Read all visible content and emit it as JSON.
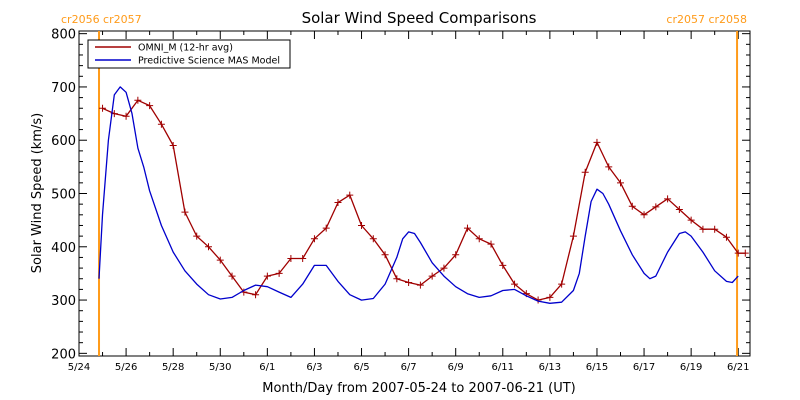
{
  "chart_data": {
    "type": "line",
    "title": "Solar Wind Speed Comparisons",
    "xlabel": "Month/Day from 2007-05-24 to 2007-06-21 (UT)",
    "ylabel": "Solar Wind Speed (km/s)",
    "xlim_days": [
      0,
      28.5
    ],
    "ylim": [
      195,
      805
    ],
    "x_ticks": [
      {
        "day": 0,
        "label": "5/24"
      },
      {
        "day": 2,
        "label": "5/26"
      },
      {
        "day": 4,
        "label": "5/28"
      },
      {
        "day": 6,
        "label": "5/30"
      },
      {
        "day": 8,
        "label": "6/1"
      },
      {
        "day": 10,
        "label": "6/3"
      },
      {
        "day": 12,
        "label": "6/5"
      },
      {
        "day": 14,
        "label": "6/7"
      },
      {
        "day": 16,
        "label": "6/9"
      },
      {
        "day": 18,
        "label": "6/11"
      },
      {
        "day": 20,
        "label": "6/13"
      },
      {
        "day": 22,
        "label": "6/15"
      },
      {
        "day": 24,
        "label": "6/17"
      },
      {
        "day": 26,
        "label": "6/19"
      },
      {
        "day": 28,
        "label": "6/21"
      }
    ],
    "y_ticks": [
      200,
      300,
      400,
      500,
      600,
      700,
      800
    ],
    "carrington_markers": [
      {
        "day": 0.85,
        "label": "cr2056 cr2057",
        "color": "#ff9b1a",
        "align": "left"
      },
      {
        "day": 27.95,
        "label": "cr2057 cr2058",
        "color": "#ff9b1a",
        "align": "right"
      }
    ],
    "legend_placement": "top-left",
    "series": [
      {
        "name": "OMNI_M (12-hr avg)",
        "color": "#a00000",
        "markers": "plus",
        "x": [
          1.0,
          1.5,
          2.0,
          2.5,
          3.0,
          3.5,
          4.0,
          4.5,
          5.0,
          5.5,
          6.0,
          6.5,
          7.0,
          7.5,
          8.0,
          8.5,
          9.0,
          9.5,
          10.0,
          10.5,
          11.0,
          11.5,
          12.0,
          12.5,
          13.0,
          13.5,
          14.0,
          14.5,
          15.0,
          15.5,
          16.0,
          16.5,
          17.0,
          17.5,
          18.0,
          18.5,
          19.0,
          19.5,
          20.0,
          20.5,
          21.0,
          21.5,
          22.0,
          22.5,
          23.0,
          23.5,
          24.0,
          24.5,
          25.0,
          25.5,
          26.0,
          26.5,
          27.0,
          27.5,
          28.0,
          28.3
        ],
        "values": [
          660,
          650,
          645,
          675,
          665,
          630,
          590,
          465,
          420,
          400,
          375,
          345,
          315,
          310,
          345,
          350,
          378,
          378,
          415,
          435,
          483,
          497,
          440,
          415,
          385,
          340,
          333,
          328,
          345,
          360,
          385,
          435,
          415,
          405,
          365,
          330,
          312,
          300,
          305,
          330,
          420,
          540,
          596,
          550,
          520,
          476,
          460,
          475,
          490,
          470,
          450,
          433,
          433,
          418,
          388,
          388
        ]
      },
      {
        "name": "Predictive Science MAS Model",
        "color": "#0000cc",
        "markers": "none",
        "x": [
          0.85,
          1.0,
          1.25,
          1.5,
          1.75,
          2.0,
          2.25,
          2.5,
          2.75,
          3.0,
          3.5,
          4.0,
          4.5,
          5.0,
          5.5,
          6.0,
          6.5,
          7.0,
          7.5,
          8.0,
          8.5,
          9.0,
          9.5,
          10.0,
          10.5,
          11.0,
          11.5,
          12.0,
          12.5,
          13.0,
          13.5,
          13.75,
          14.0,
          14.25,
          14.5,
          15.0,
          15.5,
          16.0,
          16.5,
          17.0,
          17.5,
          18.0,
          18.5,
          19.0,
          19.5,
          20.0,
          20.5,
          21.0,
          21.25,
          21.5,
          21.75,
          22.0,
          22.25,
          22.5,
          23.0,
          23.5,
          24.0,
          24.25,
          24.5,
          25.0,
          25.5,
          25.75,
          26.0,
          26.5,
          27.0,
          27.5,
          27.75,
          28.0
        ],
        "values": [
          340,
          460,
          600,
          685,
          700,
          690,
          650,
          585,
          550,
          505,
          440,
          390,
          355,
          330,
          310,
          302,
          305,
          318,
          328,
          325,
          315,
          305,
          330,
          365,
          365,
          335,
          310,
          300,
          303,
          330,
          380,
          415,
          428,
          425,
          408,
          370,
          345,
          325,
          312,
          305,
          308,
          318,
          320,
          308,
          298,
          294,
          296,
          318,
          350,
          420,
          485,
          508,
          500,
          480,
          430,
          385,
          350,
          340,
          345,
          390,
          425,
          428,
          420,
          390,
          355,
          335,
          333,
          345
        ]
      }
    ]
  }
}
